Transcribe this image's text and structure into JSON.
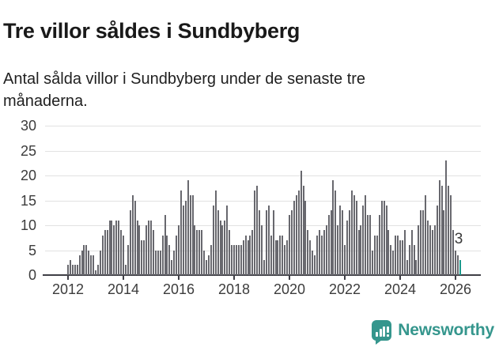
{
  "title": "Tre villor såldes i Sundbyberg",
  "subtitle": "Antal sålda villor i Sundbyberg under de senaste tre månaderna.",
  "branding": {
    "logo_text": "Newsworthy",
    "logo_icon": "bar-chart-speech-bubble-icon"
  },
  "colors": {
    "bar": "#68686e",
    "highlight": "#1a9a8c",
    "grid": "#e2e2e2",
    "axis": "#3f3f46",
    "tick_text": "#3c3c3c",
    "logo": "#35968d"
  },
  "chart_data": {
    "type": "bar",
    "title": "Tre villor såldes i Sundbyberg",
    "subtitle": "Antal sålda villor i Sundbyberg under de senaste tre månaderna.",
    "x_monthly_from": "2012-01",
    "x_tick_labels": [
      "2012",
      "2014",
      "2016",
      "2018",
      "2020",
      "2022",
      "2024",
      "2026"
    ],
    "y_ticks": [
      0,
      5,
      10,
      15,
      20,
      25,
      30
    ],
    "ylim": [
      0,
      30
    ],
    "grid": true,
    "highlight_last": true,
    "last_value_label": "3",
    "values": [
      2,
      3,
      2,
      2,
      2,
      4,
      5,
      6,
      6,
      5,
      4,
      4,
      1,
      2,
      5,
      8,
      9,
      9,
      11,
      11,
      10,
      11,
      11,
      9,
      8,
      2,
      6,
      13,
      16,
      15,
      11,
      10,
      7,
      7,
      10,
      11,
      11,
      9,
      5,
      5,
      5,
      8,
      12,
      8,
      6,
      3,
      5,
      8,
      10,
      17,
      14,
      15,
      19,
      16,
      16,
      10,
      9,
      9,
      9,
      5,
      3,
      4,
      6,
      14,
      17,
      13,
      11,
      10,
      11,
      14,
      9,
      6,
      6,
      6,
      6,
      6,
      7,
      8,
      7,
      8,
      9,
      17,
      18,
      13,
      10,
      3,
      13,
      14,
      8,
      13,
      7,
      7,
      8,
      8,
      6,
      7,
      12,
      13,
      15,
      16,
      17,
      21,
      18,
      15,
      9,
      7,
      5,
      4,
      8,
      9,
      8,
      9,
      10,
      12,
      13,
      19,
      17,
      10,
      14,
      13,
      6,
      11,
      13,
      17,
      16,
      15,
      9,
      10,
      14,
      16,
      12,
      12,
      5,
      8,
      8,
      12,
      15,
      15,
      14,
      9,
      6,
      5,
      8,
      8,
      7,
      7,
      9,
      3,
      6,
      9,
      6,
      3,
      10,
      13,
      13,
      16,
      11,
      10,
      9,
      10,
      14,
      19,
      18,
      13,
      23,
      18,
      16,
      9,
      5,
      4,
      3
    ]
  }
}
